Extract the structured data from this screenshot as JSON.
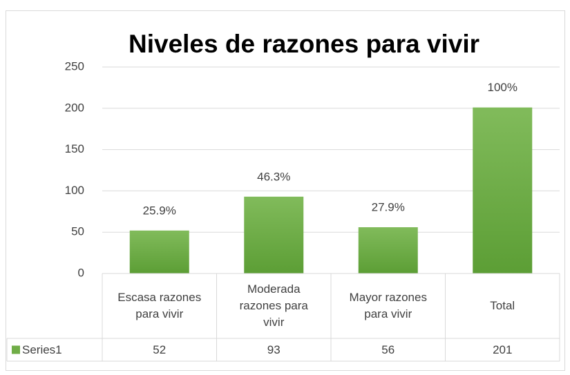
{
  "chart_data": {
    "type": "bar",
    "title": "Niveles de razones para vivir",
    "categories": [
      "Escasa razones para vivir",
      "Moderada razones para vivir",
      "Mayor razones para vivir",
      "Total"
    ],
    "series": [
      {
        "name": "Series1",
        "color": "#70ad47",
        "values": [
          52,
          93,
          56,
          201
        ]
      }
    ],
    "data_labels": [
      "25.9%",
      "46.3%",
      "27.9%",
      "100%"
    ],
    "ylim": [
      0,
      250
    ],
    "yticks": [
      0,
      50,
      100,
      150,
      200,
      250
    ],
    "grid": true
  }
}
